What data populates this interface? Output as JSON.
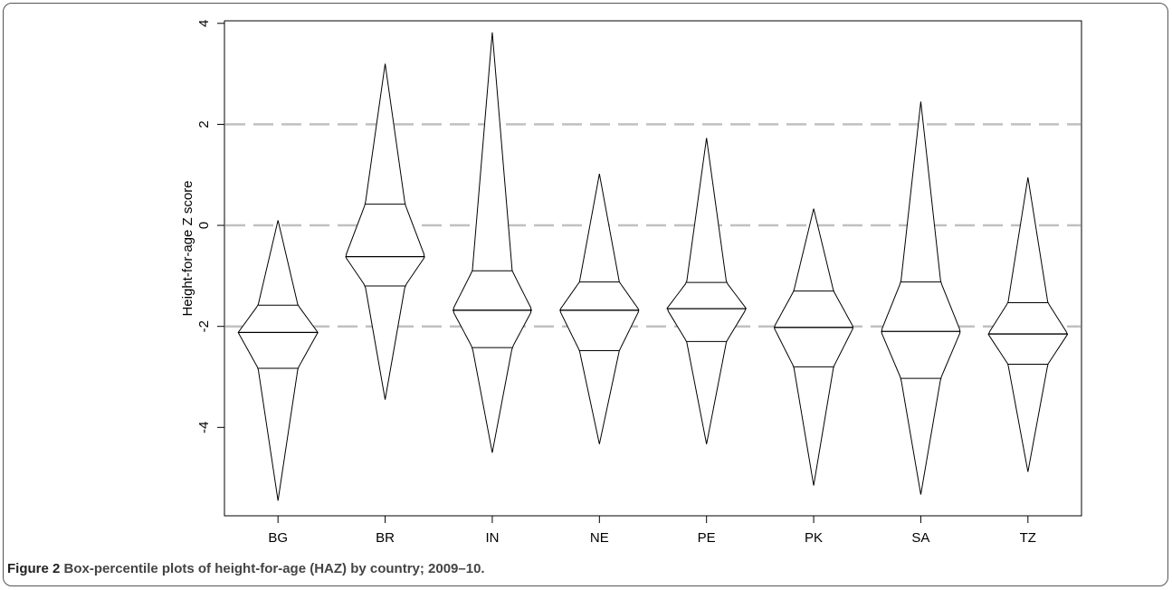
{
  "figure": {
    "label": "Figure 2",
    "caption": "Box-percentile plots of height-for-age (HAZ) by country; 2009–10."
  },
  "chart_data": {
    "type": "box-percentile",
    "title": "",
    "xlabel": "",
    "ylabel": "Height-for-age Z score",
    "categories": [
      "BG",
      "BR",
      "IN",
      "NE",
      "PE",
      "PK",
      "SA",
      "TZ"
    ],
    "ylim": [
      -5.75,
      4.05
    ],
    "yticks": [
      -4,
      -2,
      0,
      2,
      4
    ],
    "ytick_labels": [
      "-4",
      "-2",
      "0",
      "2",
      "4"
    ],
    "reference_lines": [
      -2,
      0,
      2
    ],
    "reference_line_color": "#c0c0c0",
    "series": [
      {
        "category": "BG",
        "min": -5.45,
        "max": 0.1,
        "q1": -2.83,
        "median": -2.12,
        "q3": -1.58
      },
      {
        "category": "BR",
        "min": -3.45,
        "max": 3.2,
        "q1": -1.2,
        "median": -0.62,
        "q3": 0.42
      },
      {
        "category": "IN",
        "min": -4.5,
        "max": 3.82,
        "q1": -2.42,
        "median": -1.68,
        "q3": -0.9
      },
      {
        "category": "NE",
        "min": -4.33,
        "max": 1.02,
        "q1": -2.48,
        "median": -1.68,
        "q3": -1.12
      },
      {
        "category": "PE",
        "min": -4.33,
        "max": 1.73,
        "q1": -2.3,
        "median": -1.65,
        "q3": -1.13
      },
      {
        "category": "PK",
        "min": -5.15,
        "max": 0.33,
        "q1": -2.8,
        "median": -2.02,
        "q3": -1.3
      },
      {
        "category": "SA",
        "min": -5.33,
        "max": 2.45,
        "q1": -3.03,
        "median": -2.1,
        "q3": -1.12
      },
      {
        "category": "TZ",
        "min": -4.88,
        "max": 0.95,
        "q1": -2.75,
        "median": -2.15,
        "q3": -1.53
      }
    ]
  }
}
